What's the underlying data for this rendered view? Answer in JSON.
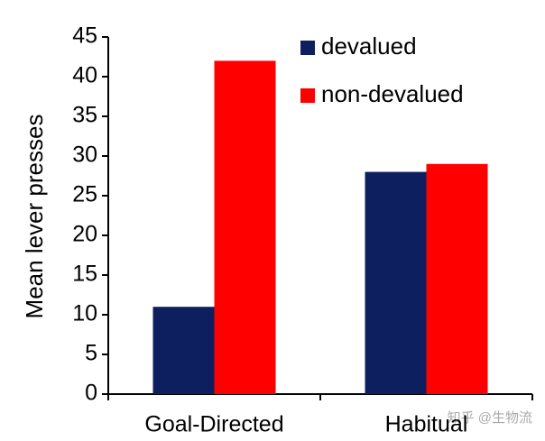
{
  "chart_data": {
    "type": "bar",
    "y_label": "Mean lever presses",
    "categories": [
      "Goal-Directed",
      "Habitual"
    ],
    "series": [
      {
        "name": "devalued",
        "color": "#0d1f5e",
        "values": [
          11,
          28
        ]
      },
      {
        "name": "non-devalued",
        "color": "#ff0000",
        "values": [
          42,
          29
        ]
      }
    ],
    "ylim": [
      0,
      45
    ],
    "yticks": [
      0,
      5,
      10,
      15,
      20,
      25,
      30,
      35,
      40,
      45
    ],
    "legend": "top-right",
    "grid": false,
    "watermark": "知乎 @生物流"
  }
}
